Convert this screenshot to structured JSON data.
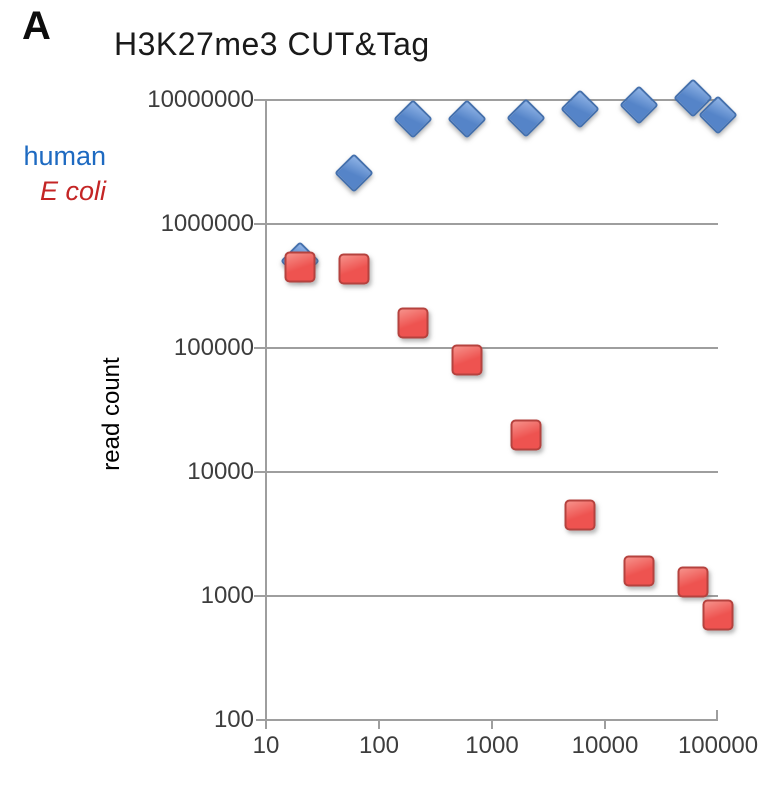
{
  "figure": {
    "panel_label": "A",
    "title": "H3K27me3 CUT&Tag"
  },
  "legend": {
    "items": [
      {
        "label": "human",
        "color": "#1e6ac1",
        "italic": false
      },
      {
        "label": "E coli",
        "color": "#c42525",
        "italic": true
      }
    ]
  },
  "axes": {
    "ylabel": "read count",
    "x_tick_labels": [
      "10",
      "100",
      "1000",
      "10000",
      "100000"
    ],
    "y_tick_labels": [
      "100",
      "1000",
      "10000",
      "100000",
      "1000000",
      "10000000"
    ],
    "axis_color": "#9e9e9e",
    "tick_label_color": "#3d3d3d"
  },
  "chart_data": {
    "type": "scatter",
    "title": "H3K27me3 CUT&Tag",
    "xlabel": "",
    "ylabel": "read count",
    "x_scale": "log",
    "y_scale": "log",
    "xlim": [
      10,
      100000
    ],
    "ylim": [
      100,
      10000000
    ],
    "x_ticks": [
      10,
      100,
      1000,
      10000,
      100000
    ],
    "y_ticks": [
      100,
      1000,
      10000,
      100000,
      1000000,
      10000000
    ],
    "grid": "horizontal-gridlines-only",
    "legend_position": "outside-left",
    "x": [
      20,
      60,
      200,
      600,
      2000,
      6000,
      20000,
      60000,
      100000
    ],
    "series": [
      {
        "name": "human",
        "marker": "diamond",
        "fill": "#5584c8",
        "fill_light": "#8fb3e6",
        "border": "#4470ad",
        "values": [
          500000,
          2600000,
          7000000,
          7000000,
          7200000,
          8500000,
          9100000,
          10300000,
          7500000
        ]
      },
      {
        "name": "E coli",
        "marker": "square",
        "fill": "#ee5350",
        "fill_light": "#f6928b",
        "border": "#b5423e",
        "values": [
          450000,
          430000,
          160000,
          80000,
          20000,
          4500,
          1600,
          1300,
          700
        ]
      }
    ]
  }
}
